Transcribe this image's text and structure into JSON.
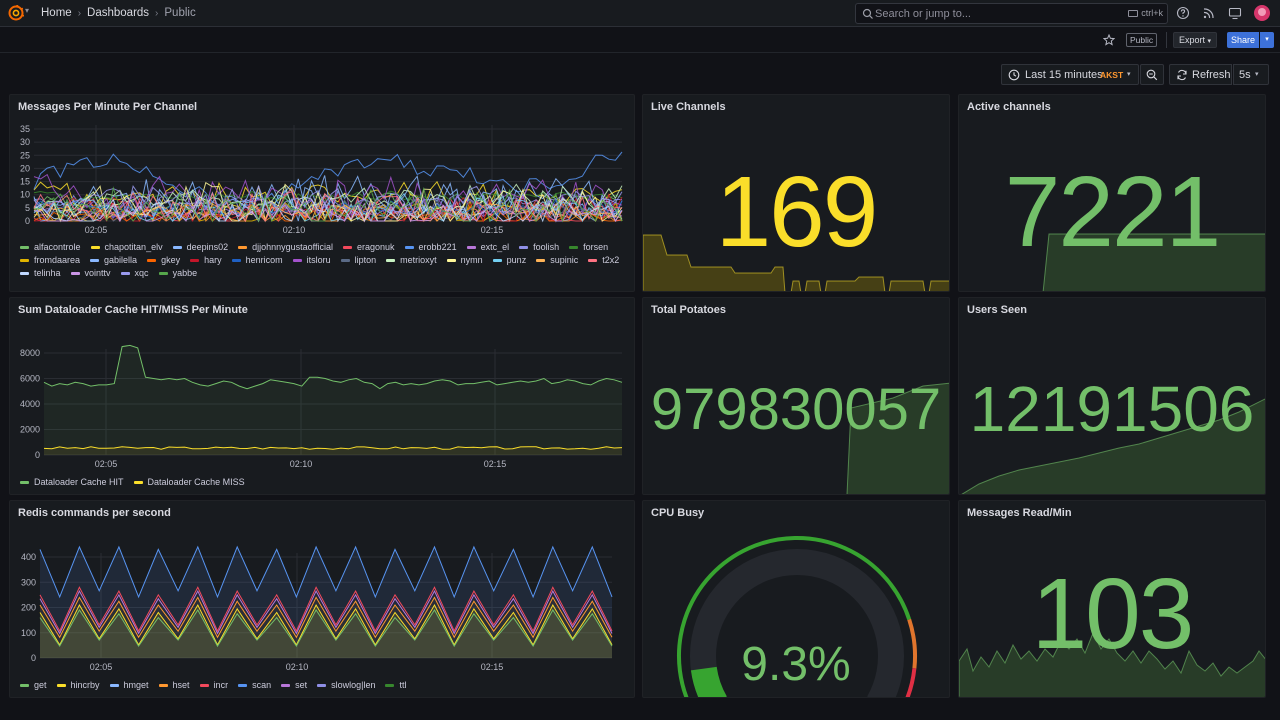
{
  "nav": {
    "breadcrumbs": [
      {
        "label": "Home"
      },
      {
        "label": "Dashboards"
      },
      {
        "label": "Public"
      }
    ],
    "search": {
      "placeholder": "Search or jump to...",
      "shortcut": "ctrl+k"
    },
    "icons": [
      "help-icon",
      "rss-icon",
      "monitor-icon",
      "avatar"
    ]
  },
  "toolbar": {
    "public_badge": "Public",
    "export_label": "Export",
    "share_label": "Share"
  },
  "time": {
    "range_label": "Last 15 minutes",
    "timezone": "AKST",
    "refresh_label": "Refresh",
    "interval": "5s"
  },
  "colors": {
    "yellow": "#fade2a",
    "green": "#73bf69",
    "orange": "#ff9830",
    "red": "#f2495c",
    "blue": "#5794f2"
  },
  "panels": {
    "messages_per_minute": {
      "title": "Messages Per Minute Per Channel",
      "y_ticks": [
        "35",
        "30",
        "25",
        "20",
        "15",
        "10",
        "5",
        "0"
      ],
      "x_ticks": [
        "02:05",
        "02:10",
        "02:15"
      ],
      "legend": [
        {
          "name": "alfacontrole",
          "color": "#73bf69"
        },
        {
          "name": "chapotitan_elv",
          "color": "#fade2a"
        },
        {
          "name": "deepins02",
          "color": "#8ab8ff"
        },
        {
          "name": "djjohnnygustaofficial",
          "color": "#ff9830"
        },
        {
          "name": "eragonuk",
          "color": "#f2495c"
        },
        {
          "name": "erobb221",
          "color": "#5794f2"
        },
        {
          "name": "extc_el",
          "color": "#b877d9"
        },
        {
          "name": "foolish",
          "color": "#8f8fe6"
        },
        {
          "name": "forsen",
          "color": "#37872d"
        },
        {
          "name": "fromdaarea",
          "color": "#e0b400"
        },
        {
          "name": "gabilella",
          "color": "#8ab8ff"
        },
        {
          "name": "gkey",
          "color": "#fa6400"
        },
        {
          "name": "hary",
          "color": "#c4162a"
        },
        {
          "name": "henricom",
          "color": "#1f60c4"
        },
        {
          "name": "itsloru",
          "color": "#a352cc"
        },
        {
          "name": "lipton",
          "color": "#5a6a86"
        },
        {
          "name": "metrioxyt",
          "color": "#c8f2c2"
        },
        {
          "name": "nymn",
          "color": "#fff899"
        },
        {
          "name": "punz",
          "color": "#73d0f2"
        },
        {
          "name": "supinic",
          "color": "#ffb357"
        },
        {
          "name": "t2x2",
          "color": "#ff7383"
        },
        {
          "name": "telinha",
          "color": "#c0d8ff"
        },
        {
          "name": "vointtv",
          "color": "#ca95e5"
        },
        {
          "name": "xqc",
          "color": "#9a9aee"
        },
        {
          "name": "yabbe",
          "color": "#56a64b"
        }
      ]
    },
    "dataloader": {
      "title": "Sum Dataloader Cache HIT/MISS Per Minute",
      "y_ticks": [
        "8000",
        "6000",
        "4000",
        "2000",
        "0"
      ],
      "x_ticks": [
        "02:05",
        "02:10",
        "02:15"
      ],
      "legend": [
        {
          "name": "Dataloader Cache HIT",
          "color": "#73bf69"
        },
        {
          "name": "Dataloader Cache MISS",
          "color": "#fade2a"
        }
      ]
    },
    "redis": {
      "title": "Redis commands per second",
      "y_ticks": [
        "400",
        "300",
        "200",
        "100",
        "0"
      ],
      "x_ticks": [
        "02:05",
        "02:10",
        "02:15"
      ],
      "legend": [
        {
          "name": "get",
          "color": "#73bf69"
        },
        {
          "name": "hincrby",
          "color": "#fade2a"
        },
        {
          "name": "hmget",
          "color": "#8ab8ff"
        },
        {
          "name": "hset",
          "color": "#ff9830"
        },
        {
          "name": "incr",
          "color": "#f2495c"
        },
        {
          "name": "scan",
          "color": "#5794f2"
        },
        {
          "name": "set",
          "color": "#b877d9"
        },
        {
          "name": "slowlog|len",
          "color": "#8f8fe6"
        },
        {
          "name": "ttl",
          "color": "#37872d"
        }
      ]
    },
    "live_channels": {
      "title": "Live Channels",
      "value": "169",
      "color": "#fade2a"
    },
    "active_channels": {
      "title": "Active channels",
      "value": "7221",
      "color": "#73bf69"
    },
    "total_potatoes": {
      "title": "Total Potatoes",
      "value": "979830057",
      "color": "#73bf69"
    },
    "users_seen": {
      "title": "Users Seen",
      "value": "12191506",
      "color": "#73bf69"
    },
    "cpu_busy": {
      "title": "CPU Busy",
      "value": "9.3%",
      "percent": 9.3,
      "color": "#73bf69"
    },
    "messages_read": {
      "title": "Messages Read/Min",
      "value": "103",
      "color": "#73bf69"
    }
  }
}
